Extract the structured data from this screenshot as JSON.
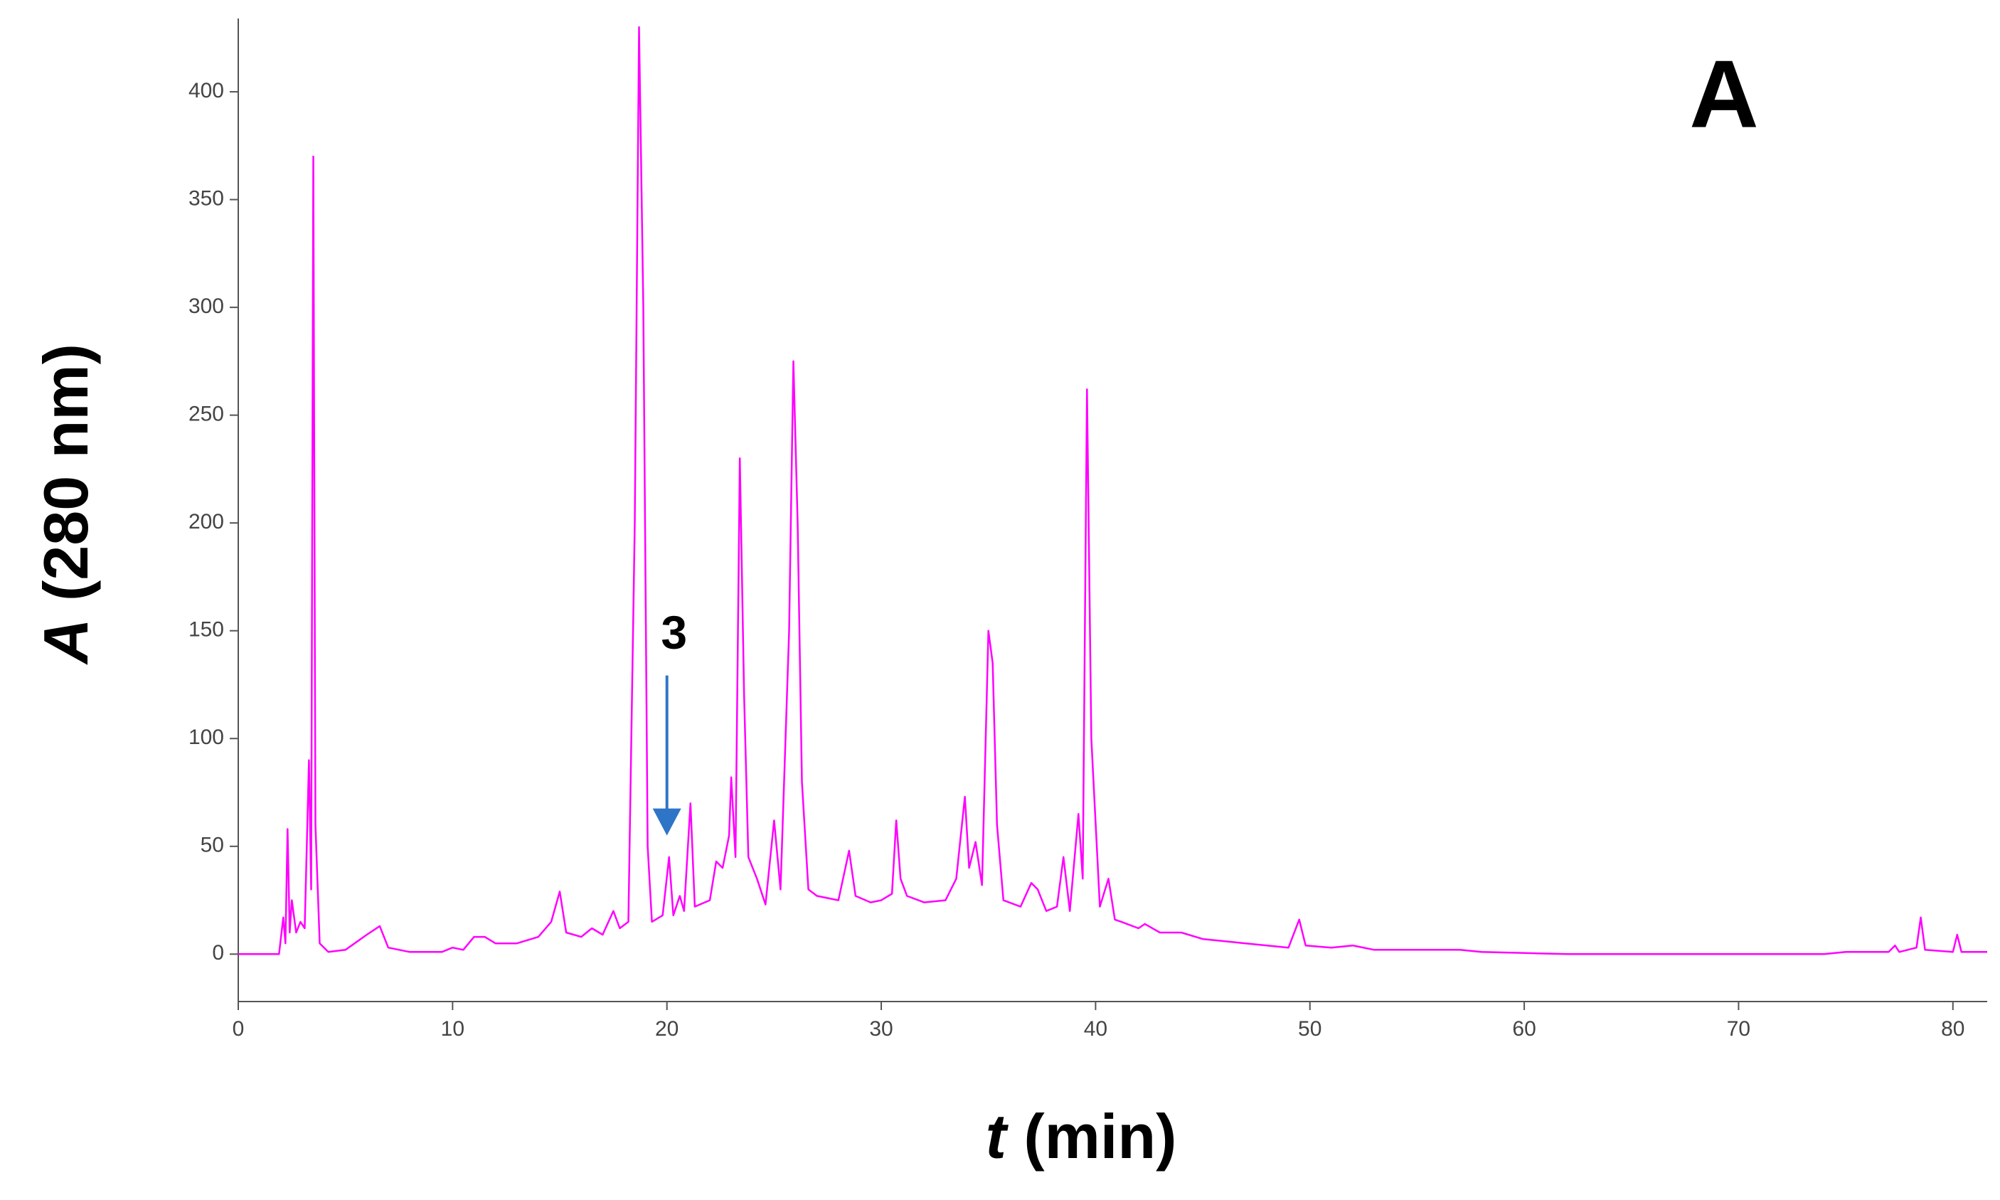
{
  "chart_data": {
    "type": "line",
    "xlabel": "t (min)",
    "ylabel": "A (280 nm)",
    "panel_label": "A",
    "annotation": {
      "text": "3",
      "x": 20,
      "y": 55
    },
    "color": "#ff00ff",
    "arrow_color": "#2e75c8",
    "xlim": [
      0,
      81.6
    ],
    "ylim": [
      -22,
      434
    ],
    "xticks": [
      0,
      10,
      20,
      30,
      40,
      50,
      60,
      70,
      80
    ],
    "yticks": [
      0,
      50,
      100,
      150,
      200,
      250,
      300,
      350,
      400
    ],
    "x": [
      0,
      1.9,
      2.1,
      2.2,
      2.3,
      2.4,
      2.5,
      2.7,
      2.9,
      3.1,
      3.3,
      3.4,
      3.5,
      3.6,
      3.8,
      4.2,
      5,
      6,
      6.6,
      7,
      8,
      9.5,
      10,
      10.5,
      11,
      11.5,
      12,
      13,
      14,
      14.6,
      15,
      15.3,
      16,
      16.5,
      17,
      17.5,
      17.8,
      18.2,
      18.5,
      18.7,
      18.9,
      19.1,
      19.3,
      19.8,
      20.1,
      20.3,
      20.6,
      20.8,
      21.1,
      21.3,
      22,
      22.3,
      22.6,
      22.9,
      23,
      23.2,
      23.4,
      23.6,
      23.8,
      24.2,
      24.6,
      25,
      25.3,
      25.7,
      25.9,
      26.1,
      26.3,
      26.6,
      27,
      28,
      28.5,
      28.8,
      29.5,
      30,
      30.5,
      30.7,
      30.9,
      31.2,
      32,
      33,
      33.5,
      33.9,
      34.1,
      34.4,
      34.7,
      35,
      35.2,
      35.4,
      35.7,
      36.5,
      37,
      37.3,
      37.7,
      38.2,
      38.5,
      38.8,
      39.2,
      39.4,
      39.6,
      39.8,
      40.2,
      40.6,
      40.9,
      41.2,
      42,
      42.3,
      43,
      44,
      45,
      46,
      47,
      48,
      49,
      49.5,
      49.8,
      51,
      52,
      53,
      55,
      57,
      58,
      60,
      62,
      74,
      75,
      77,
      77.3,
      77.5,
      78.3,
      78.5,
      78.7,
      80,
      80.2,
      80.4,
      81.6
    ],
    "values": [
      0,
      0,
      17,
      5,
      58,
      10,
      25,
      10,
      15,
      12,
      90,
      30,
      370,
      60,
      5,
      1,
      2,
      9,
      13,
      3,
      1,
      1,
      3,
      2,
      8,
      8,
      5,
      5,
      8,
      15,
      29,
      10,
      8,
      12,
      9,
      20,
      12,
      15,
      200,
      430,
      300,
      50,
      15,
      18,
      45,
      18,
      27,
      20,
      70,
      22,
      25,
      43,
      40,
      55,
      82,
      45,
      230,
      120,
      45,
      35,
      23,
      62,
      30,
      150,
      275,
      200,
      80,
      30,
      27,
      25,
      48,
      27,
      24,
      25,
      28,
      62,
      35,
      27,
      24,
      25,
      35,
      73,
      40,
      52,
      32,
      150,
      135,
      60,
      25,
      22,
      33,
      30,
      20,
      22,
      45,
      20,
      65,
      35,
      262,
      100,
      22,
      35,
      16,
      15,
      12,
      14,
      10,
      10,
      7,
      6,
      5,
      4,
      3,
      16,
      4,
      3,
      4,
      2,
      2,
      2,
      1,
      0.5,
      0,
      0,
      1,
      1,
      4,
      1,
      3,
      17,
      2,
      1,
      9,
      1,
      1
    ]
  }
}
